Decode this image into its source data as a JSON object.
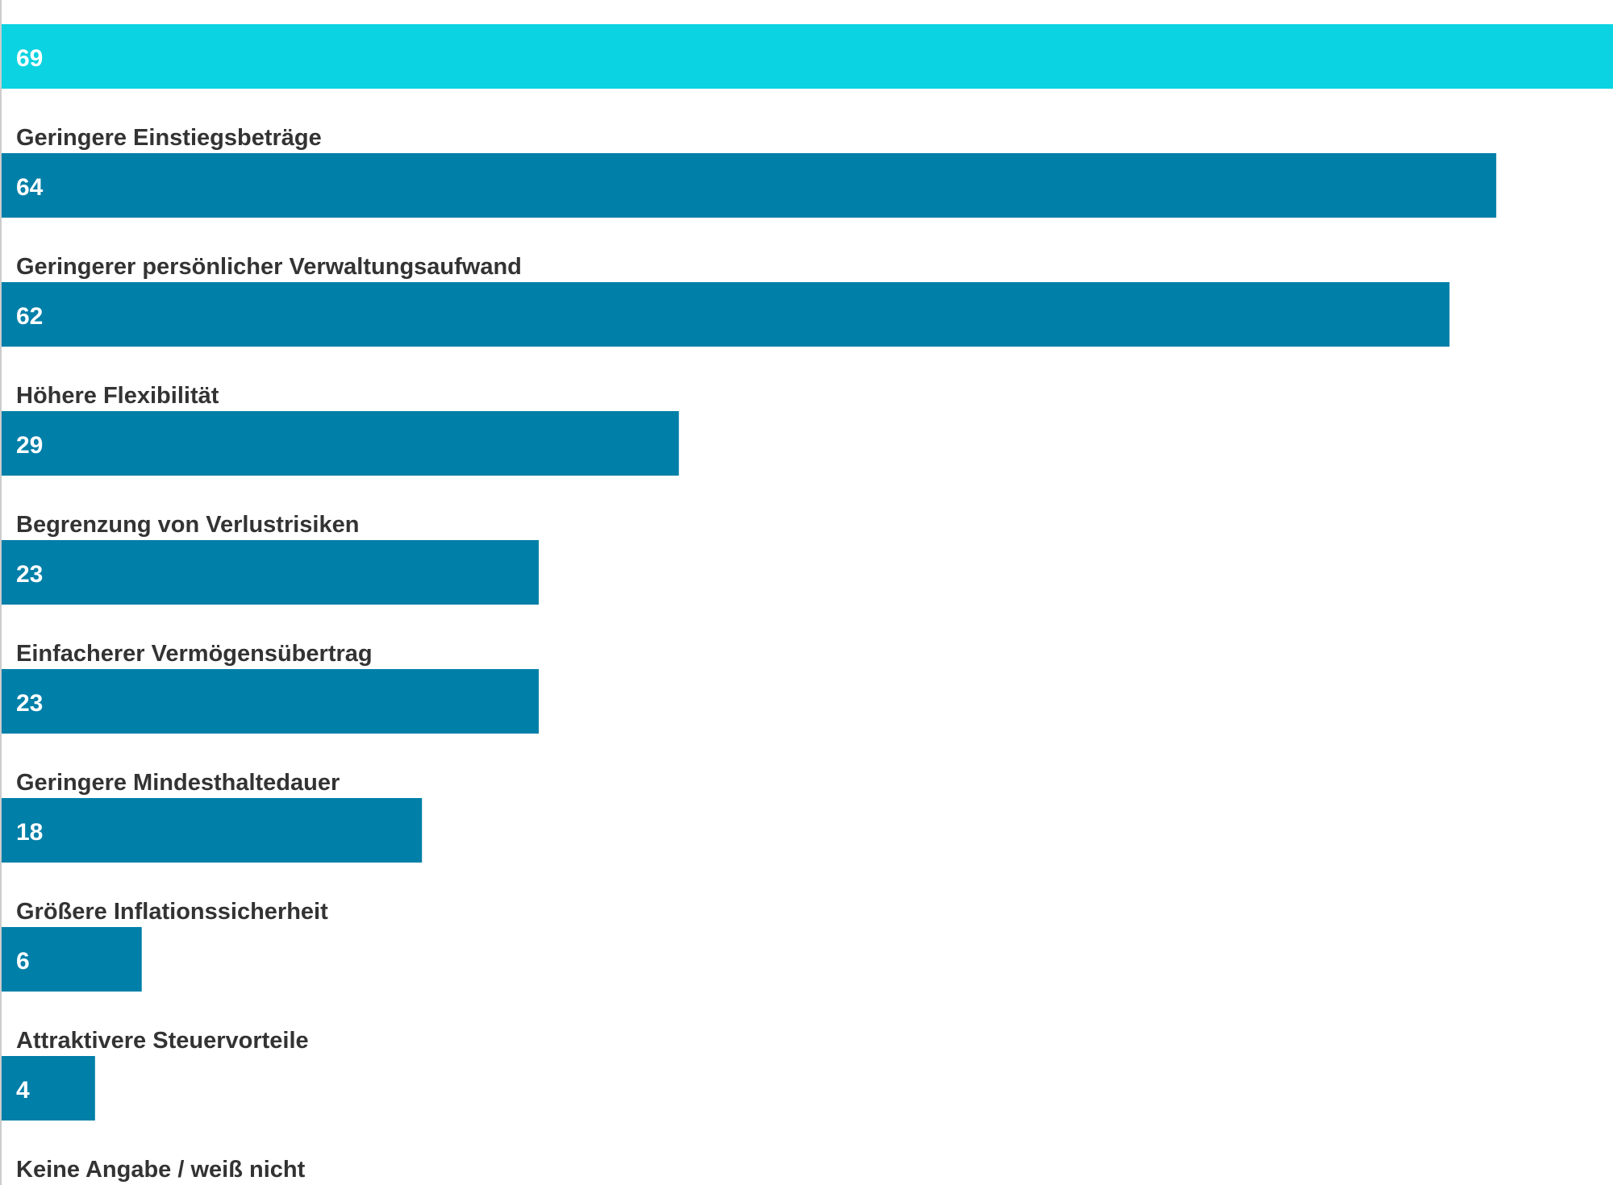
{
  "chart_data": {
    "type": "bar",
    "orientation": "horizontal",
    "title": "",
    "xlabel": "",
    "ylabel": "",
    "xlim": [
      0,
      69
    ],
    "grid": false,
    "legend": "none",
    "categories": [
      "Geringere Einstiegsbeträge",
      "Geringerer persönlicher Verwaltungsaufwand",
      "Höhere Flexibilität",
      "Begrenzung von Verlustrisiken",
      "Einfacherer Vermögensübertrag",
      "Geringere Mindesthaltedauer",
      "Größere Inflationssicherheit",
      "Attraktivere Steuervorteile",
      "Keine Angabe / weiß nicht"
    ],
    "values": [
      69,
      64,
      62,
      29,
      23,
      23,
      18,
      6,
      4
    ],
    "value_labels": [
      "69",
      "64",
      "62",
      "29",
      "23",
      "23",
      "18",
      "6",
      "4"
    ],
    "colors": {
      "highlight": "#0BD3E1",
      "default": "#007FA8",
      "value_text": "#FFFFFF",
      "label_text": "#333333",
      "axis_line": "#CCCCCC"
    },
    "highlight_index": 0
  }
}
